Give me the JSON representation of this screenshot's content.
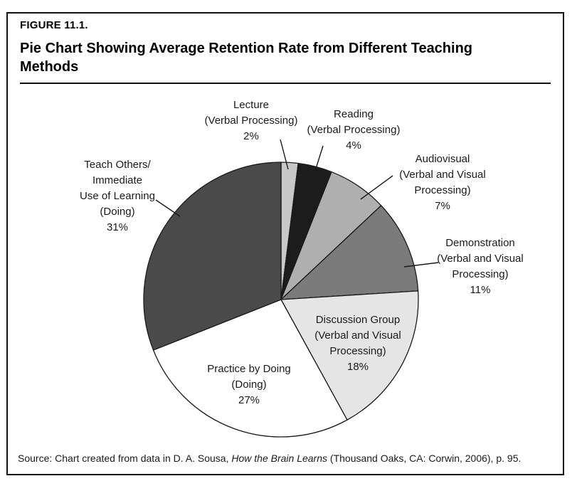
{
  "figure": {
    "label": "FIGURE 11.1.",
    "title": "Pie Chart Showing Average Retention Rate from Different Teaching Methods"
  },
  "source": {
    "prefix": "Source: Chart created from data in D. A. Sousa, ",
    "book_title": "How the Brain Learns",
    "suffix": " (Thousand Oaks, CA: Corwin, 2006), p. 95."
  },
  "chart_data": {
    "type": "pie",
    "title": "Pie Chart Showing Average Retention Rate from Different Teaching Methods",
    "categories": [
      "Lecture (Verbal Processing)",
      "Reading (Verbal Processing)",
      "Audiovisual (Verbal and Visual Processing)",
      "Demonstration (Verbal and Visual Processing)",
      "Discussion Group (Verbal and Visual Processing)",
      "Practice by Doing (Doing)",
      "Teach Others/Immediate Use of Learning (Doing)"
    ],
    "values": [
      2,
      4,
      7,
      11,
      18,
      27,
      31
    ],
    "unit": "%",
    "start_angle": "12 o'clock, clockwise",
    "legend": "none (direct labels: outside with leader lines for small slices, inside for large slices)",
    "slices": [
      {
        "id": "lecture",
        "value": 2,
        "color": "#c8c8c8",
        "label_lines": [
          "Lecture",
          "(Verbal Processing)",
          "2%"
        ]
      },
      {
        "id": "reading",
        "value": 4,
        "color": "#1c1c1c",
        "label_lines": [
          "Reading",
          "(Verbal Processing)",
          "4%"
        ]
      },
      {
        "id": "audiovisual",
        "value": 7,
        "color": "#afafaf",
        "label_lines": [
          "Audiovisual",
          "(Verbal and Visual",
          "Processing)",
          "7%"
        ]
      },
      {
        "id": "demonstration",
        "value": 11,
        "color": "#7b7b7b",
        "label_lines": [
          "Demonstration",
          "(Verbal and Visual",
          "Processing)",
          "11%"
        ]
      },
      {
        "id": "discussion-group",
        "value": 18,
        "color": "#e5e5e5",
        "label_lines": [
          "Discussion Group",
          "(Verbal and Visual",
          "Processing)",
          "18%"
        ]
      },
      {
        "id": "practice-by-doing",
        "value": 27,
        "color": "#ffffff",
        "label_lines": [
          "Practice by Doing",
          "(Doing)",
          "27%"
        ]
      },
      {
        "id": "teach-others",
        "value": 31,
        "color": "#4a4a4a",
        "label_lines": [
          "Teach Others/",
          "Immediate",
          "Use of Learning",
          "(Doing)",
          "31%"
        ]
      }
    ],
    "outline_color": "#1a1a1a"
  }
}
